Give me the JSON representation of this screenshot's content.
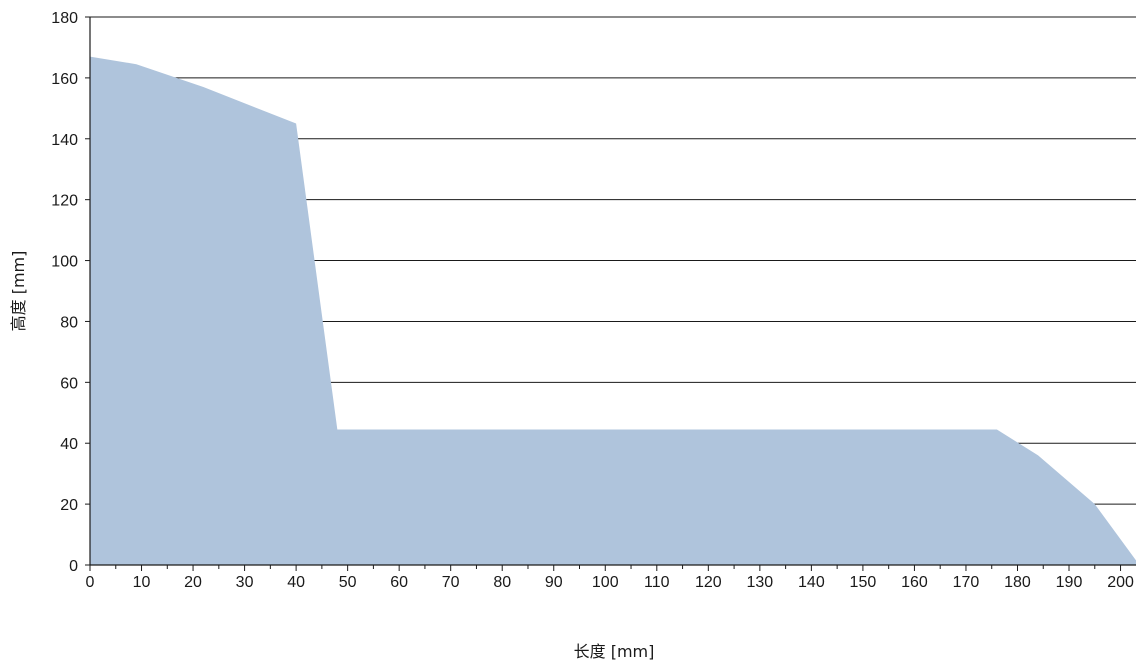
{
  "chart_data": {
    "type": "area",
    "xlabel": "长度 [mm]",
    "ylabel": "高度 [mm]",
    "xlim": [
      0,
      203
    ],
    "ylim": [
      0,
      180
    ],
    "x_ticks": [
      0,
      10,
      20,
      30,
      40,
      50,
      60,
      70,
      80,
      90,
      100,
      110,
      120,
      130,
      140,
      150,
      160,
      170,
      180,
      190,
      200
    ],
    "y_ticks": [
      0,
      20,
      40,
      60,
      80,
      100,
      120,
      140,
      160,
      180
    ],
    "grid": "horizontal",
    "fill_color": "#afc4dc",
    "series": [
      {
        "x": [
          0,
          9,
          22,
          40,
          48,
          176,
          184,
          195,
          203
        ],
        "y": [
          167,
          164.5,
          157,
          145,
          44.5,
          44.5,
          36,
          20,
          1.5
        ]
      }
    ]
  }
}
